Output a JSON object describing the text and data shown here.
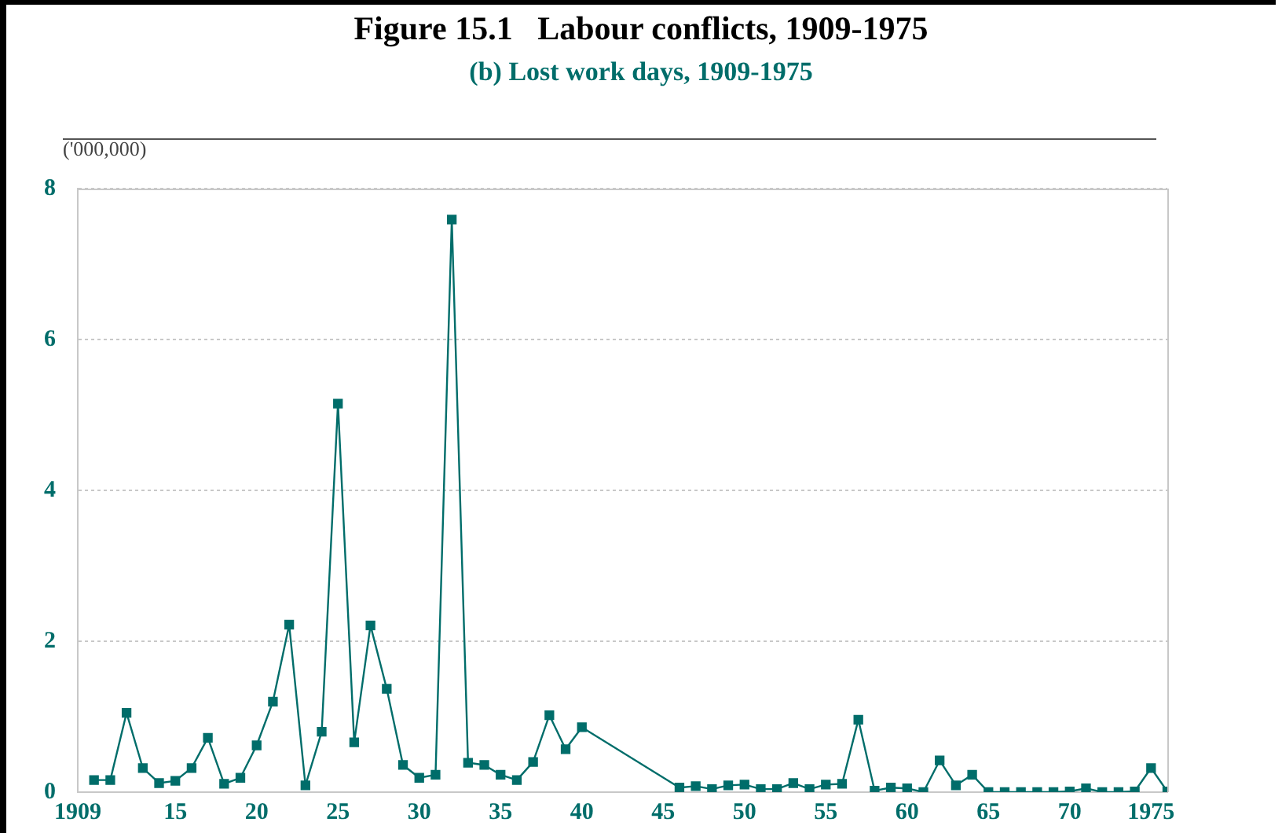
{
  "chart_data": {
    "type": "line",
    "title": "Figure 15.1   Labour conflicts, 1909-1975",
    "subtitle": "(b) Lost work days, 1909-1975",
    "ylabel": "('000,000)",
    "x": [
      1910,
      1911,
      1912,
      1913,
      1914,
      1915,
      1916,
      1917,
      1918,
      1919,
      1920,
      1921,
      1922,
      1923,
      1924,
      1925,
      1926,
      1927,
      1928,
      1929,
      1930,
      1931,
      1932,
      1933,
      1934,
      1935,
      1936,
      1937,
      1938,
      1939,
      1940,
      1946,
      1947,
      1948,
      1949,
      1950,
      1951,
      1952,
      1953,
      1954,
      1955,
      1956,
      1957,
      1958,
      1959,
      1960,
      1961,
      1962,
      1963,
      1964,
      1965,
      1966,
      1967,
      1968,
      1969,
      1970,
      1971,
      1972,
      1973,
      1974,
      1975,
      1976
    ],
    "series": [
      {
        "color": "#006d6a",
        "values": [
          0.16,
          0.16,
          1.05,
          0.32,
          0.12,
          0.15,
          0.32,
          0.72,
          0.11,
          0.19,
          0.62,
          1.2,
          2.22,
          0.09,
          0.8,
          5.15,
          0.66,
          2.21,
          1.37,
          0.36,
          0.19,
          0.23,
          7.59,
          0.39,
          0.36,
          0.23,
          0.16,
          0.4,
          1.02,
          0.57,
          0.86,
          0.06,
          0.08,
          0.04,
          0.09,
          0.1,
          0.04,
          0.04,
          0.12,
          0.04,
          0.1,
          0.11,
          0.96,
          0.02,
          0.06,
          0.05,
          0,
          0.42,
          0.09,
          0.23,
          0,
          0,
          0,
          0,
          0,
          0.01,
          0.05,
          0,
          0,
          0.01,
          0.32,
          0.01
        ]
      }
    ],
    "xlim": [
      1909,
      1976
    ],
    "xticks": [
      1909,
      {
        "value": 1915,
        "label": "15"
      },
      {
        "value": 1920,
        "label": "20"
      },
      {
        "value": 1925,
        "label": "25"
      },
      {
        "value": 1930,
        "label": "30"
      },
      {
        "value": 1935,
        "label": "35"
      },
      {
        "value": 1940,
        "label": "40"
      },
      {
        "value": 1945,
        "label": "45"
      },
      {
        "value": 1950,
        "label": "50"
      },
      {
        "value": 1955,
        "label": "55"
      },
      {
        "value": 1960,
        "label": "60"
      },
      {
        "value": 1965,
        "label": "65"
      },
      {
        "value": 1970,
        "label": "70"
      },
      1975
    ],
    "ylim": [
      0,
      8
    ],
    "yticks": [
      0,
      2,
      4,
      6,
      8
    ],
    "grid": "y",
    "legend": false,
    "marker": "square",
    "line_style": "solid"
  }
}
